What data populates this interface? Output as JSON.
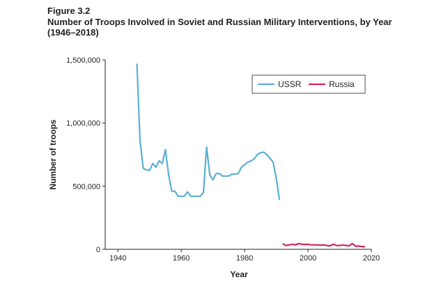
{
  "figure": {
    "label": "Figure 3.2",
    "title": "Number of Troops Involved in Soviet and Russian Military Interventions, by Year (1946–2018)"
  },
  "chart_data": {
    "type": "line",
    "xlabel": "Year",
    "ylabel": "Number of troops",
    "xlim": [
      1936,
      2020
    ],
    "ylim": [
      0,
      1500000
    ],
    "x_ticks": [
      1940,
      1960,
      1980,
      2000,
      2020
    ],
    "x_tick_labels": [
      "1940",
      "1960",
      "1980",
      "2000",
      "2020"
    ],
    "y_ticks": [
      0,
      500000,
      1000000,
      1500000
    ],
    "y_tick_labels": [
      "0",
      "500,000",
      "1,000,000",
      "1,500,000"
    ],
    "grid": false,
    "legend_position": "top-right",
    "series": [
      {
        "name": "USSR",
        "color": "#5aafd4",
        "x": [
          1946,
          1947,
          1948,
          1949,
          1950,
          1951,
          1952,
          1953,
          1954,
          1955,
          1956,
          1957,
          1958,
          1959,
          1960,
          1961,
          1962,
          1963,
          1964,
          1965,
          1966,
          1967,
          1968,
          1969,
          1970,
          1971,
          1972,
          1973,
          1974,
          1975,
          1976,
          1977,
          1978,
          1979,
          1980,
          1981,
          1982,
          1983,
          1984,
          1985,
          1986,
          1987,
          1988,
          1989,
          1990,
          1991
        ],
        "y": [
          1470000,
          860000,
          640000,
          630000,
          625000,
          680000,
          650000,
          700000,
          680000,
          790000,
          590000,
          460000,
          460000,
          420000,
          420000,
          420000,
          455000,
          420000,
          420000,
          420000,
          420000,
          450000,
          810000,
          590000,
          550000,
          600000,
          600000,
          580000,
          580000,
          580000,
          595000,
          595000,
          600000,
          650000,
          670000,
          690000,
          700000,
          715000,
          750000,
          765000,
          770000,
          750000,
          720000,
          690000,
          560000,
          390000
        ]
      },
      {
        "name": "Russia",
        "color": "#d3265a",
        "x": [
          1992,
          1993,
          1994,
          1995,
          1996,
          1997,
          1998,
          1999,
          2000,
          2001,
          2002,
          2003,
          2004,
          2005,
          2006,
          2007,
          2008,
          2009,
          2010,
          2011,
          2012,
          2013,
          2014,
          2015,
          2016,
          2017,
          2018
        ],
        "y": [
          45000,
          30000,
          35000,
          40000,
          35000,
          45000,
          40000,
          38000,
          40000,
          35000,
          35000,
          35000,
          33000,
          35000,
          30000,
          28000,
          40000,
          30000,
          30000,
          35000,
          30000,
          28000,
          45000,
          25000,
          25000,
          22000,
          20000
        ]
      }
    ]
  }
}
